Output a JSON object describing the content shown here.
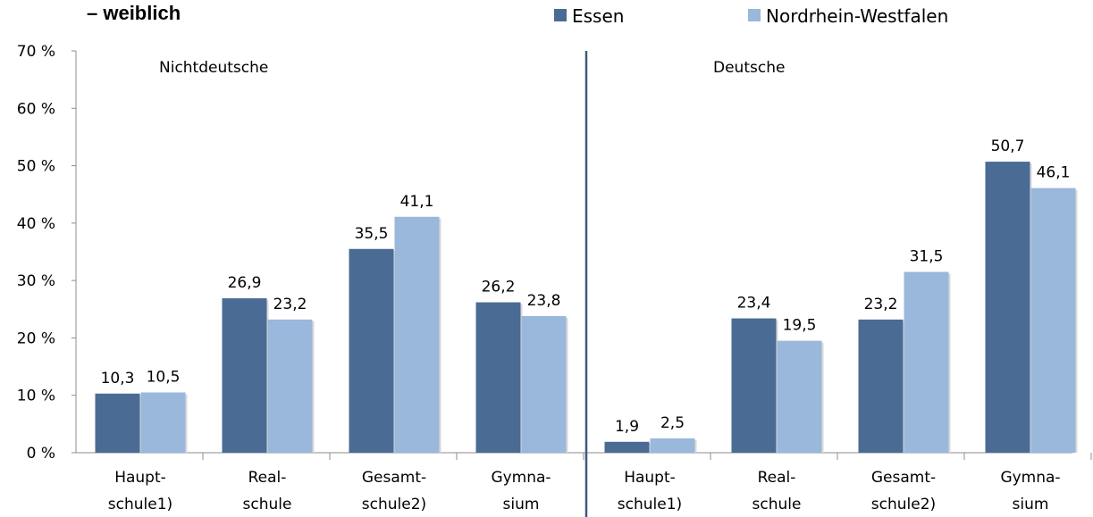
{
  "title_fragment": "– weiblich",
  "colors": {
    "Essen": "#4a6b94",
    "Nordrhein-Westfalen": "#9ab7dc",
    "divider": "#3d5a80"
  },
  "chart_data": {
    "type": "bar",
    "y_ticks": [
      "0 %",
      "10 %",
      "20 %",
      "30 %",
      "40 %",
      "50 %",
      "60 %",
      "70 %"
    ],
    "ylim": [
      0,
      70
    ],
    "grid": false,
    "legend": {
      "placement": "top-right",
      "entries": [
        "Essen",
        "Nordrhein-Westfalen"
      ]
    },
    "groups": [
      {
        "label": "Nichtdeutsche",
        "categories": [
          {
            "line1": "Haupt-",
            "line2": "schule1)"
          },
          {
            "line1": "Real-",
            "line2": "schule"
          },
          {
            "line1": "Gesamt-",
            "line2": "schule2)"
          },
          {
            "line1": "Gymna-",
            "line2": "sium"
          }
        ],
        "series": [
          {
            "name": "Essen",
            "values": [
              10.3,
              26.9,
              35.5,
              26.2
            ],
            "labels": [
              "10,3",
              "26,9",
              "35,5",
              "26,2"
            ]
          },
          {
            "name": "Nordrhein-Westfalen",
            "values": [
              10.5,
              23.2,
              41.1,
              23.8
            ],
            "labels": [
              "10,5",
              "23,2",
              "41,1",
              "23,8"
            ]
          }
        ]
      },
      {
        "label": "Deutsche",
        "categories": [
          {
            "line1": "Haupt-",
            "line2": "schule1)"
          },
          {
            "line1": "Real-",
            "line2": "schule"
          },
          {
            "line1": "Gesamt-",
            "line2": "schule2)"
          },
          {
            "line1": "Gymna-",
            "line2": "sium"
          }
        ],
        "series": [
          {
            "name": "Essen",
            "values": [
              1.9,
              23.4,
              23.2,
              50.7
            ],
            "labels": [
              "1,9",
              "23,4",
              "23,2",
              "50,7"
            ]
          },
          {
            "name": "Nordrhein-Westfalen",
            "values": [
              2.5,
              19.5,
              31.5,
              46.1
            ],
            "labels": [
              "2,5",
              "19,5",
              "31,5",
              "46,1"
            ]
          }
        ]
      }
    ]
  }
}
